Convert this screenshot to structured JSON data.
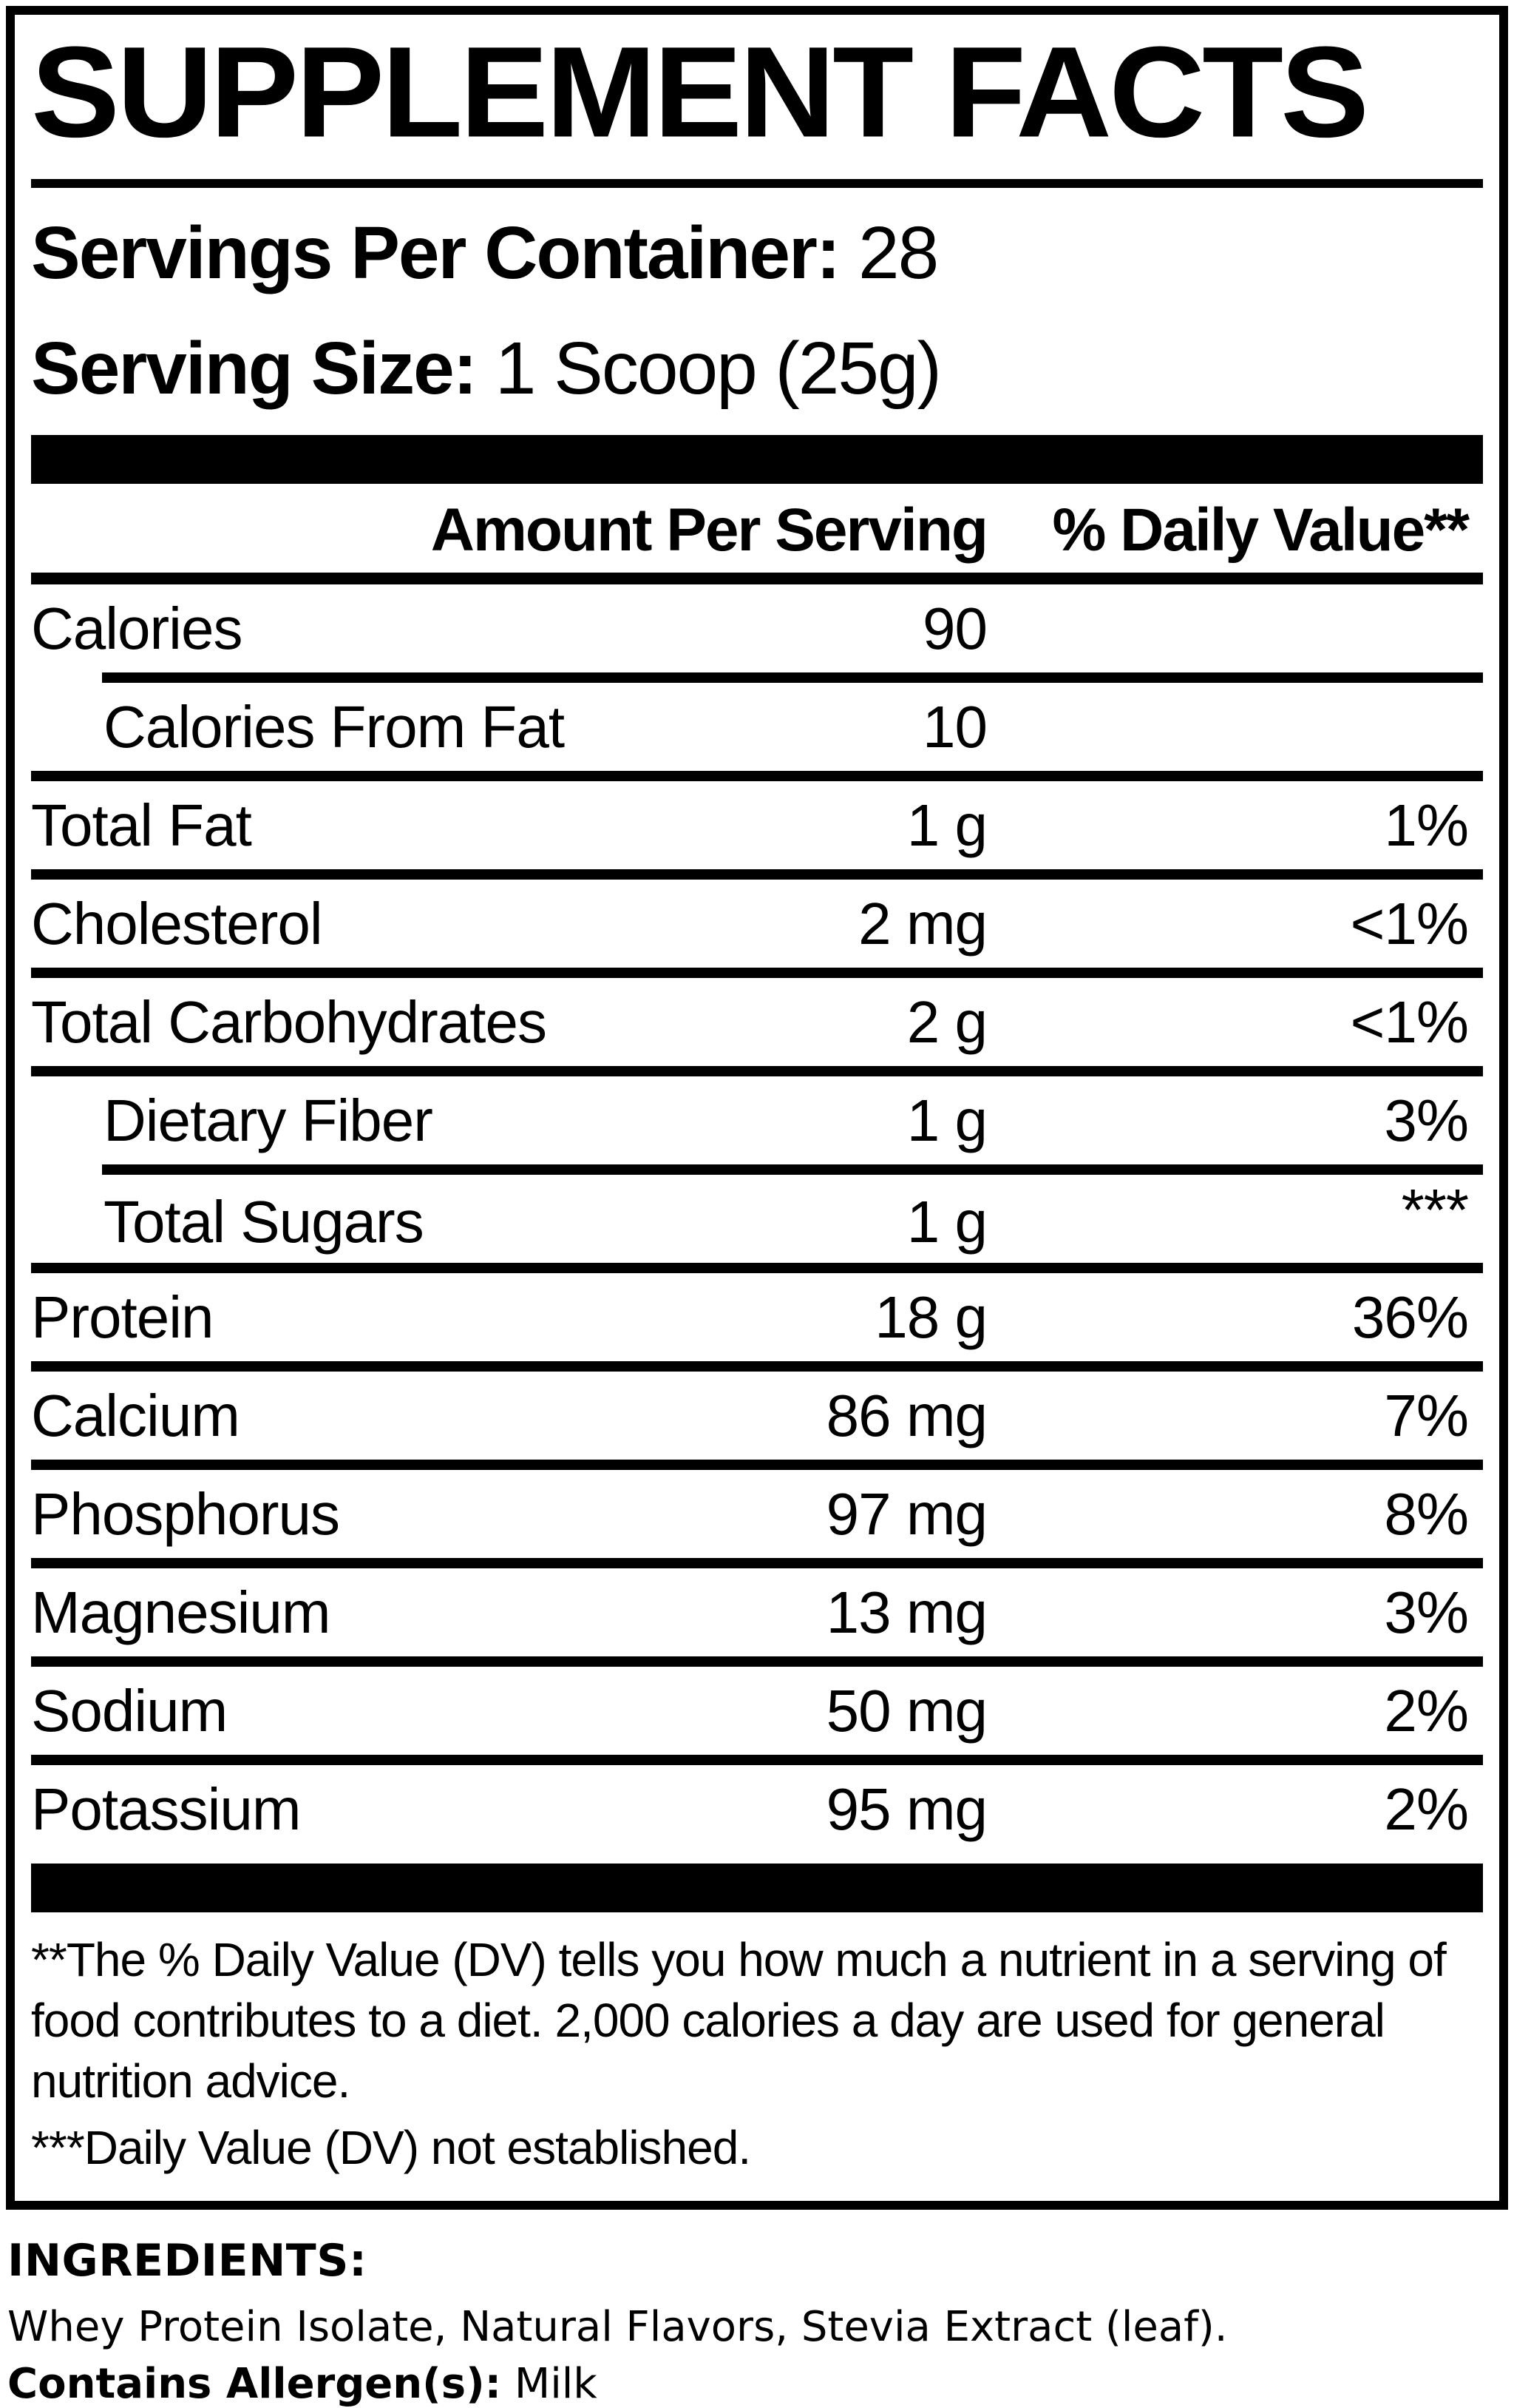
{
  "title": "SUPPLEMENT FACTS",
  "serving_info": {
    "servings_per_container_label": "Servings Per Container:",
    "servings_per_container_value": "28",
    "serving_size_label": "Serving Size:",
    "serving_size_value": "1 Scoop (25g)"
  },
  "table": {
    "header": {
      "amount": "Amount Per Serving",
      "daily_value": "% Daily Value**"
    },
    "rows": [
      {
        "label": "Calories",
        "amount": "90",
        "dv": "",
        "indent": false
      },
      {
        "label": "Calories From Fat",
        "amount": "10",
        "dv": "",
        "indent": true
      },
      {
        "label": "Total Fat",
        "amount": "1 g",
        "dv": "1%",
        "indent": false
      },
      {
        "label": "Cholesterol",
        "amount": "2 mg",
        "dv": "<1%",
        "indent": false
      },
      {
        "label": "Total Carbohydrates",
        "amount": "2 g",
        "dv": "<1%",
        "indent": false
      },
      {
        "label": "Dietary Fiber",
        "amount": "1 g",
        "dv": "3%",
        "indent": true
      },
      {
        "label": "Total Sugars",
        "amount": "1 g",
        "dv": "***",
        "indent": true
      },
      {
        "label": "Protein",
        "amount": "18 g",
        "dv": "36%",
        "indent": false
      },
      {
        "label": "Calcium",
        "amount": "86 mg",
        "dv": "7%",
        "indent": false
      },
      {
        "label": "Phosphorus",
        "amount": "97 mg",
        "dv": "8%",
        "indent": false
      },
      {
        "label": "Magnesium",
        "amount": "13 mg",
        "dv": "3%",
        "indent": false
      },
      {
        "label": "Sodium",
        "amount": "50 mg",
        "dv": "2%",
        "indent": false
      },
      {
        "label": "Potassium",
        "amount": "95 mg",
        "dv": "2%",
        "indent": false
      }
    ]
  },
  "footnotes": {
    "daily_value_note": "**The % Daily Value (DV) tells you how much a nutrient in a serving of food contributes to a diet. 2,000 calories a day are used for general nutrition advice.",
    "not_established_note": "***Daily Value (DV) not established."
  },
  "ingredients": {
    "heading": "INGREDIENTS:",
    "list": "Whey Protein Isolate, Natural Flavors, Stevia Extract (leaf).",
    "allergen_label": "Contains Allergen(s):",
    "allergen_value": "Milk"
  },
  "colors": {
    "text": "#000000",
    "background": "#ffffff"
  }
}
